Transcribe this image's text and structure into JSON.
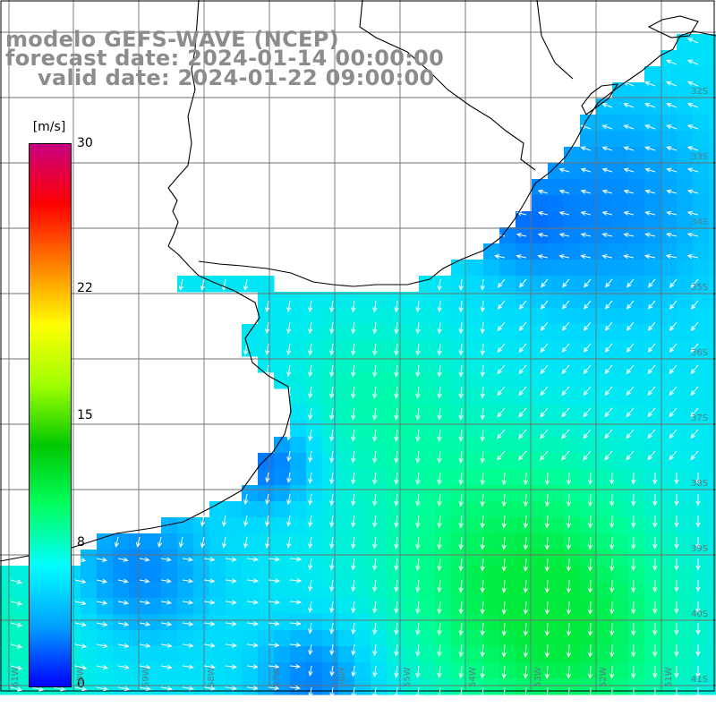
{
  "title": {
    "model": "modelo GEFS-WAVE (NCEP)",
    "forecast": "forecast date: 2024-01-14 00:00:00",
    "valid": "valid date: 2024-01-22 09:00:00"
  },
  "colorbar": {
    "units": "[m/s]",
    "ticks": [
      "30",
      "22",
      "15",
      "8",
      "0"
    ],
    "tick_values": [
      30,
      22,
      15,
      8,
      0
    ],
    "min": 0,
    "max": 30,
    "colors": [
      "#0000ff",
      "#00a0ff",
      "#00ffff",
      "#00ff60",
      "#00c800",
      "#a0ff00",
      "#ffff00",
      "#ff8000",
      "#ff0000",
      "#c80080"
    ]
  },
  "grid": {
    "lat_labels": [
      "32S",
      "33S",
      "34S",
      "35S",
      "36S",
      "37S",
      "38S",
      "39S",
      "40S",
      "41S"
    ],
    "lon_labels": [
      "61W",
      "60W",
      "59W",
      "58W",
      "57W",
      "56W",
      "55W",
      "54W",
      "53W",
      "52W",
      "51W"
    ]
  },
  "field": {
    "variable": "wind speed",
    "direction": "predominantly south-southwest / south",
    "ocean_base_color": "#00e8ff",
    "land_color": "#ffffff"
  }
}
